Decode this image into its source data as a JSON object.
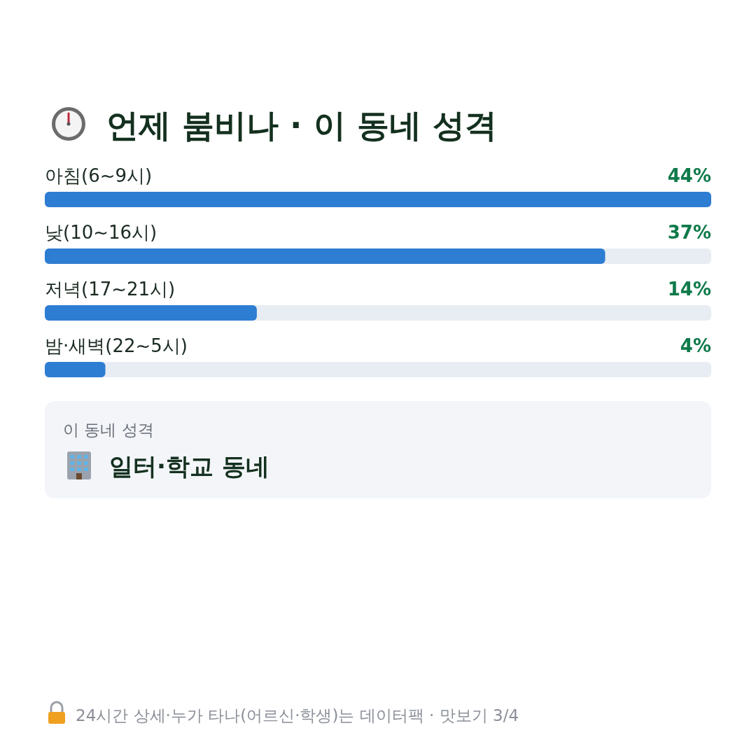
{
  "chart_data": {
    "type": "bar",
    "orientation": "horizontal",
    "title": "언제 붐비나 · 이 동네 성격",
    "categories": [
      "아침(6~9시)",
      "낮(10~16시)",
      "저녁(17~21시)",
      "밤·새벽(22~5시)"
    ],
    "values": [
      44,
      37,
      14,
      4
    ],
    "value_labels": [
      "44%",
      "37%",
      "14%",
      "4%"
    ],
    "color": "#2d7dd2",
    "annotations": [
      "이 동네 성격",
      "일터·학교 동네",
      "24시간 상세·누가 타나(어르신·학생)는 데이터팩 · 맛보기 3/4"
    ]
  }
}
